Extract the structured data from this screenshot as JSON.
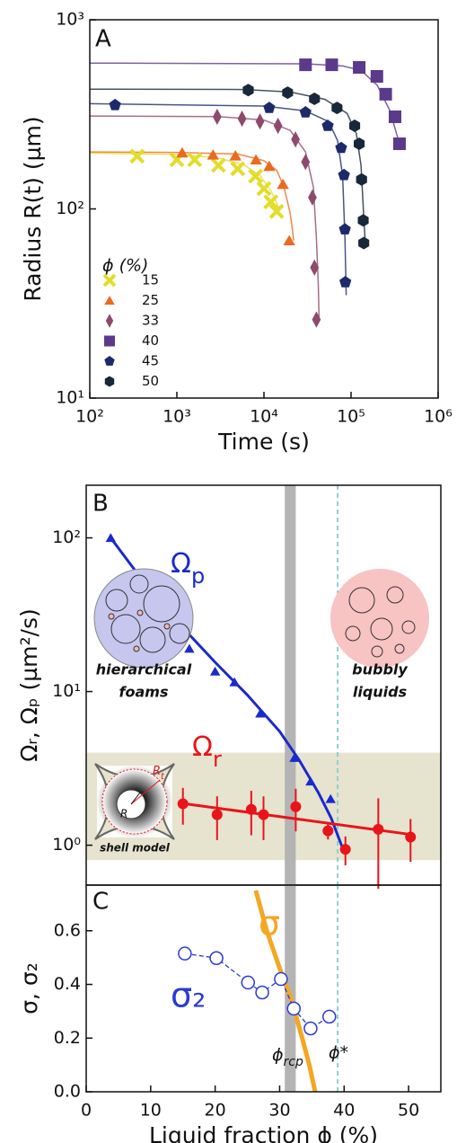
{
  "chart_data": [
    {
      "type": "scatter",
      "panel": "A",
      "xlabel": "Time (s)",
      "ylabel": "Radius R(t) (µm)",
      "xscale": "log",
      "yscale": "log",
      "xlim": [
        100,
        1000000
      ],
      "ylim": [
        10,
        1000
      ],
      "xticks": [
        {
          "value": 100,
          "label": "10²"
        },
        {
          "value": 1000,
          "label": "10³"
        },
        {
          "value": 10000,
          "label": "10⁴"
        },
        {
          "value": 100000,
          "label": "10⁵"
        },
        {
          "value": 1000000,
          "label": "10⁶"
        }
      ],
      "yticks": [
        {
          "value": 10,
          "label": "10¹"
        },
        {
          "value": 100,
          "label": "10²"
        },
        {
          "value": 1000,
          "label": "10³"
        }
      ],
      "legend": "lower left",
      "legend_title": "ϕ (%)",
      "series": [
        {
          "name": "15",
          "color": "#e4dc2c",
          "marker": "x",
          "x": [
            350,
            1000,
            1600,
            3000,
            5000,
            8000,
            10000,
            12000,
            14000
          ],
          "values": [
            190,
            182,
            182,
            170,
            163,
            149,
            128,
            109,
            97
          ],
          "fit_x": [
            100,
            1000,
            3000,
            6000,
            9000,
            12000,
            15000
          ],
          "fit_values": [
            197,
            194,
            186,
            170,
            150,
            125,
            100
          ]
        },
        {
          "name": "25",
          "color": "#ec6a1e",
          "marker": "triangle",
          "x": [
            1150,
            2600,
            4700,
            8100,
            11500,
            16500,
            19500
          ],
          "values": [
            198,
            193,
            191,
            182,
            168,
            135,
            68
          ],
          "fit_x": [
            100,
            1000,
            5000,
            10000,
            14000,
            17000,
            20000,
            22000
          ],
          "fit_values": [
            200,
            199,
            195,
            180,
            160,
            130,
            95,
            68
          ]
        },
        {
          "name": "33",
          "color": "#8e4a6c",
          "marker": "diamond",
          "x": [
            2900,
            5600,
            9000,
            14500,
            23000,
            30000,
            36000,
            38000,
            40000
          ],
          "values": [
            307,
            300,
            290,
            275,
            233,
            177,
            115,
            49,
            26
          ],
          "fit_x": [
            100,
            3000,
            10000,
            20000,
            30000,
            37000,
            40000,
            42000,
            43000
          ],
          "fit_values": [
            310,
            308,
            295,
            260,
            200,
            130,
            70,
            40,
            26
          ]
        },
        {
          "name": "40",
          "color": "#5b3a8c",
          "marker": "square",
          "x": [
            30000,
            60000,
            124000,
            198000,
            250000,
            320000,
            360000
          ],
          "values": [
            578,
            578,
            560,
            502,
            404,
            307,
            221
          ],
          "fit_x": [
            100,
            30000,
            80000,
            130000,
            200000,
            280000,
            360000
          ],
          "fit_values": [
            590,
            585,
            570,
            540,
            450,
            330,
            220
          ]
        },
        {
          "name": "45",
          "color": "#1c2a6c",
          "marker": "pentagon",
          "x": [
            195,
            11500,
            30000,
            54000,
            77000,
            83000,
            85000,
            86000
          ],
          "values": [
            354,
            342,
            324,
            275,
            210,
            151,
            78,
            41
          ],
          "fit_x": [
            100,
            10000,
            30000,
            55000,
            70000,
            80000,
            85000,
            88000
          ],
          "fit_values": [
            360,
            350,
            330,
            290,
            230,
            150,
            70,
            35
          ]
        },
        {
          "name": "50",
          "color": "#17283a",
          "marker": "hexagon",
          "x": [
            6600,
            18700,
            38000,
            69000,
            110000,
            124000,
            132000,
            138000,
            140000
          ],
          "values": [
            425,
            412,
            382,
            342,
            275,
            221,
            143,
            87,
            66
          ],
          "fit_x": [
            100,
            6000,
            20000,
            50000,
            90000,
            115000,
            130000,
            140000,
            145000
          ],
          "fit_values": [
            430,
            428,
            415,
            380,
            320,
            250,
            170,
            90,
            68
          ]
        }
      ]
    },
    {
      "type": "scatter",
      "panel": "B",
      "ylabel": "Ωᵣ, Ωₚ  (µm²/s)",
      "yscale": "log",
      "xlim": [
        0,
        55
      ],
      "ylim": [
        0.55,
        220
      ],
      "yticks": [
        {
          "value": 1,
          "label": "10⁰"
        },
        {
          "value": 10,
          "label": "10¹"
        },
        {
          "value": 100,
          "label": "10²"
        }
      ],
      "bands": [
        {
          "ylim": [
            0.8,
            4.0
          ],
          "color": "#e6e3cf"
        },
        {
          "xlim": [
            30.8,
            32.5
          ],
          "color": "#b4b4b4"
        }
      ],
      "vline": {
        "x": 39,
        "color": "#8ecfcf"
      },
      "series": [
        {
          "color": "#1a2acc",
          "marker": "triangle",
          "x": [
            3.8,
            8,
            12,
            16,
            20,
            23,
            27,
            32.3,
            34.8,
            37.9
          ],
          "values": [
            100,
            54,
            34,
            19,
            13.5,
            11.5,
            7.2,
            3.7,
            2.6,
            2.0
          ],
          "fit_x": [
            3.8,
            10,
            15,
            20,
            25,
            30,
            33,
            36,
            38,
            40
          ],
          "fit_values": [
            100,
            45,
            26,
            15.5,
            9.5,
            5.5,
            3.6,
            2.2,
            1.5,
            0.9
          ]
        },
        {
          "color": "#e8141a",
          "marker": "circle",
          "x": [
            15,
            20.3,
            25.6,
            27.5,
            32.5,
            37.5,
            40.2,
            45.3,
            50.3
          ],
          "values": [
            1.86,
            1.58,
            1.71,
            1.58,
            1.78,
            1.24,
            0.94,
            1.27,
            1.13
          ],
          "errors": [
            0.5,
            0.5,
            0.55,
            0.5,
            0.55,
            0.15,
            0.2,
            0.75,
            0.35
          ],
          "fit_x": [
            15,
            50
          ],
          "fit_values": [
            1.87,
            1.18
          ]
        }
      ],
      "annotations": {
        "omega_p": {
          "symbol": "Ω",
          "subscript": "p"
        },
        "omega_r": {
          "symbol": "Ω",
          "subscript": "r"
        },
        "foams": [
          "hierarchical",
          "foams"
        ],
        "bubbly": [
          "bubbly",
          "liquids"
        ],
        "shell": "shell model",
        "rt": {
          "symbol": "R",
          "subscript": "t"
        },
        "r": "R"
      }
    },
    {
      "type": "line",
      "panel": "C",
      "xlabel": "Liquid fraction ϕ (%)",
      "ylabel": "σ, σ₂",
      "xlim": [
        0,
        55
      ],
      "ylim": [
        0,
        0.77
      ],
      "xticks": [
        0,
        10,
        20,
        30,
        40,
        50
      ],
      "yticks": [
        {
          "value": 0,
          "label": "0.0"
        },
        0.2,
        0.4,
        0.6
      ],
      "bands": [
        {
          "xlim": [
            30.8,
            32.5
          ],
          "color": "#b4b4b4"
        }
      ],
      "vline": {
        "x": 39,
        "color": "#8ecfcf"
      },
      "series": [
        {
          "color": "#f5a623",
          "marker": "none",
          "x": [
            26.3,
            28,
            30,
            32,
            33.5,
            34.6,
            35.5
          ],
          "values": [
            0.75,
            0.6,
            0.46,
            0.33,
            0.2,
            0.1,
            0
          ]
        },
        {
          "color": "#2a3ad6",
          "marker": "open-circle",
          "dashed": true,
          "x": [
            15.3,
            20.2,
            25.1,
            27.3,
            30.2,
            32.2,
            34.8,
            37.7
          ],
          "values": [
            0.515,
            0.498,
            0.407,
            0.37,
            0.42,
            0.31,
            0.236,
            0.28
          ]
        }
      ],
      "annotations": {
        "sigma": "σ",
        "sigma2": "σ₂",
        "phi_rcp": {
          "symbol": "ϕ",
          "subscript": "rcp"
        },
        "phi_star": "ϕ*"
      }
    }
  ]
}
